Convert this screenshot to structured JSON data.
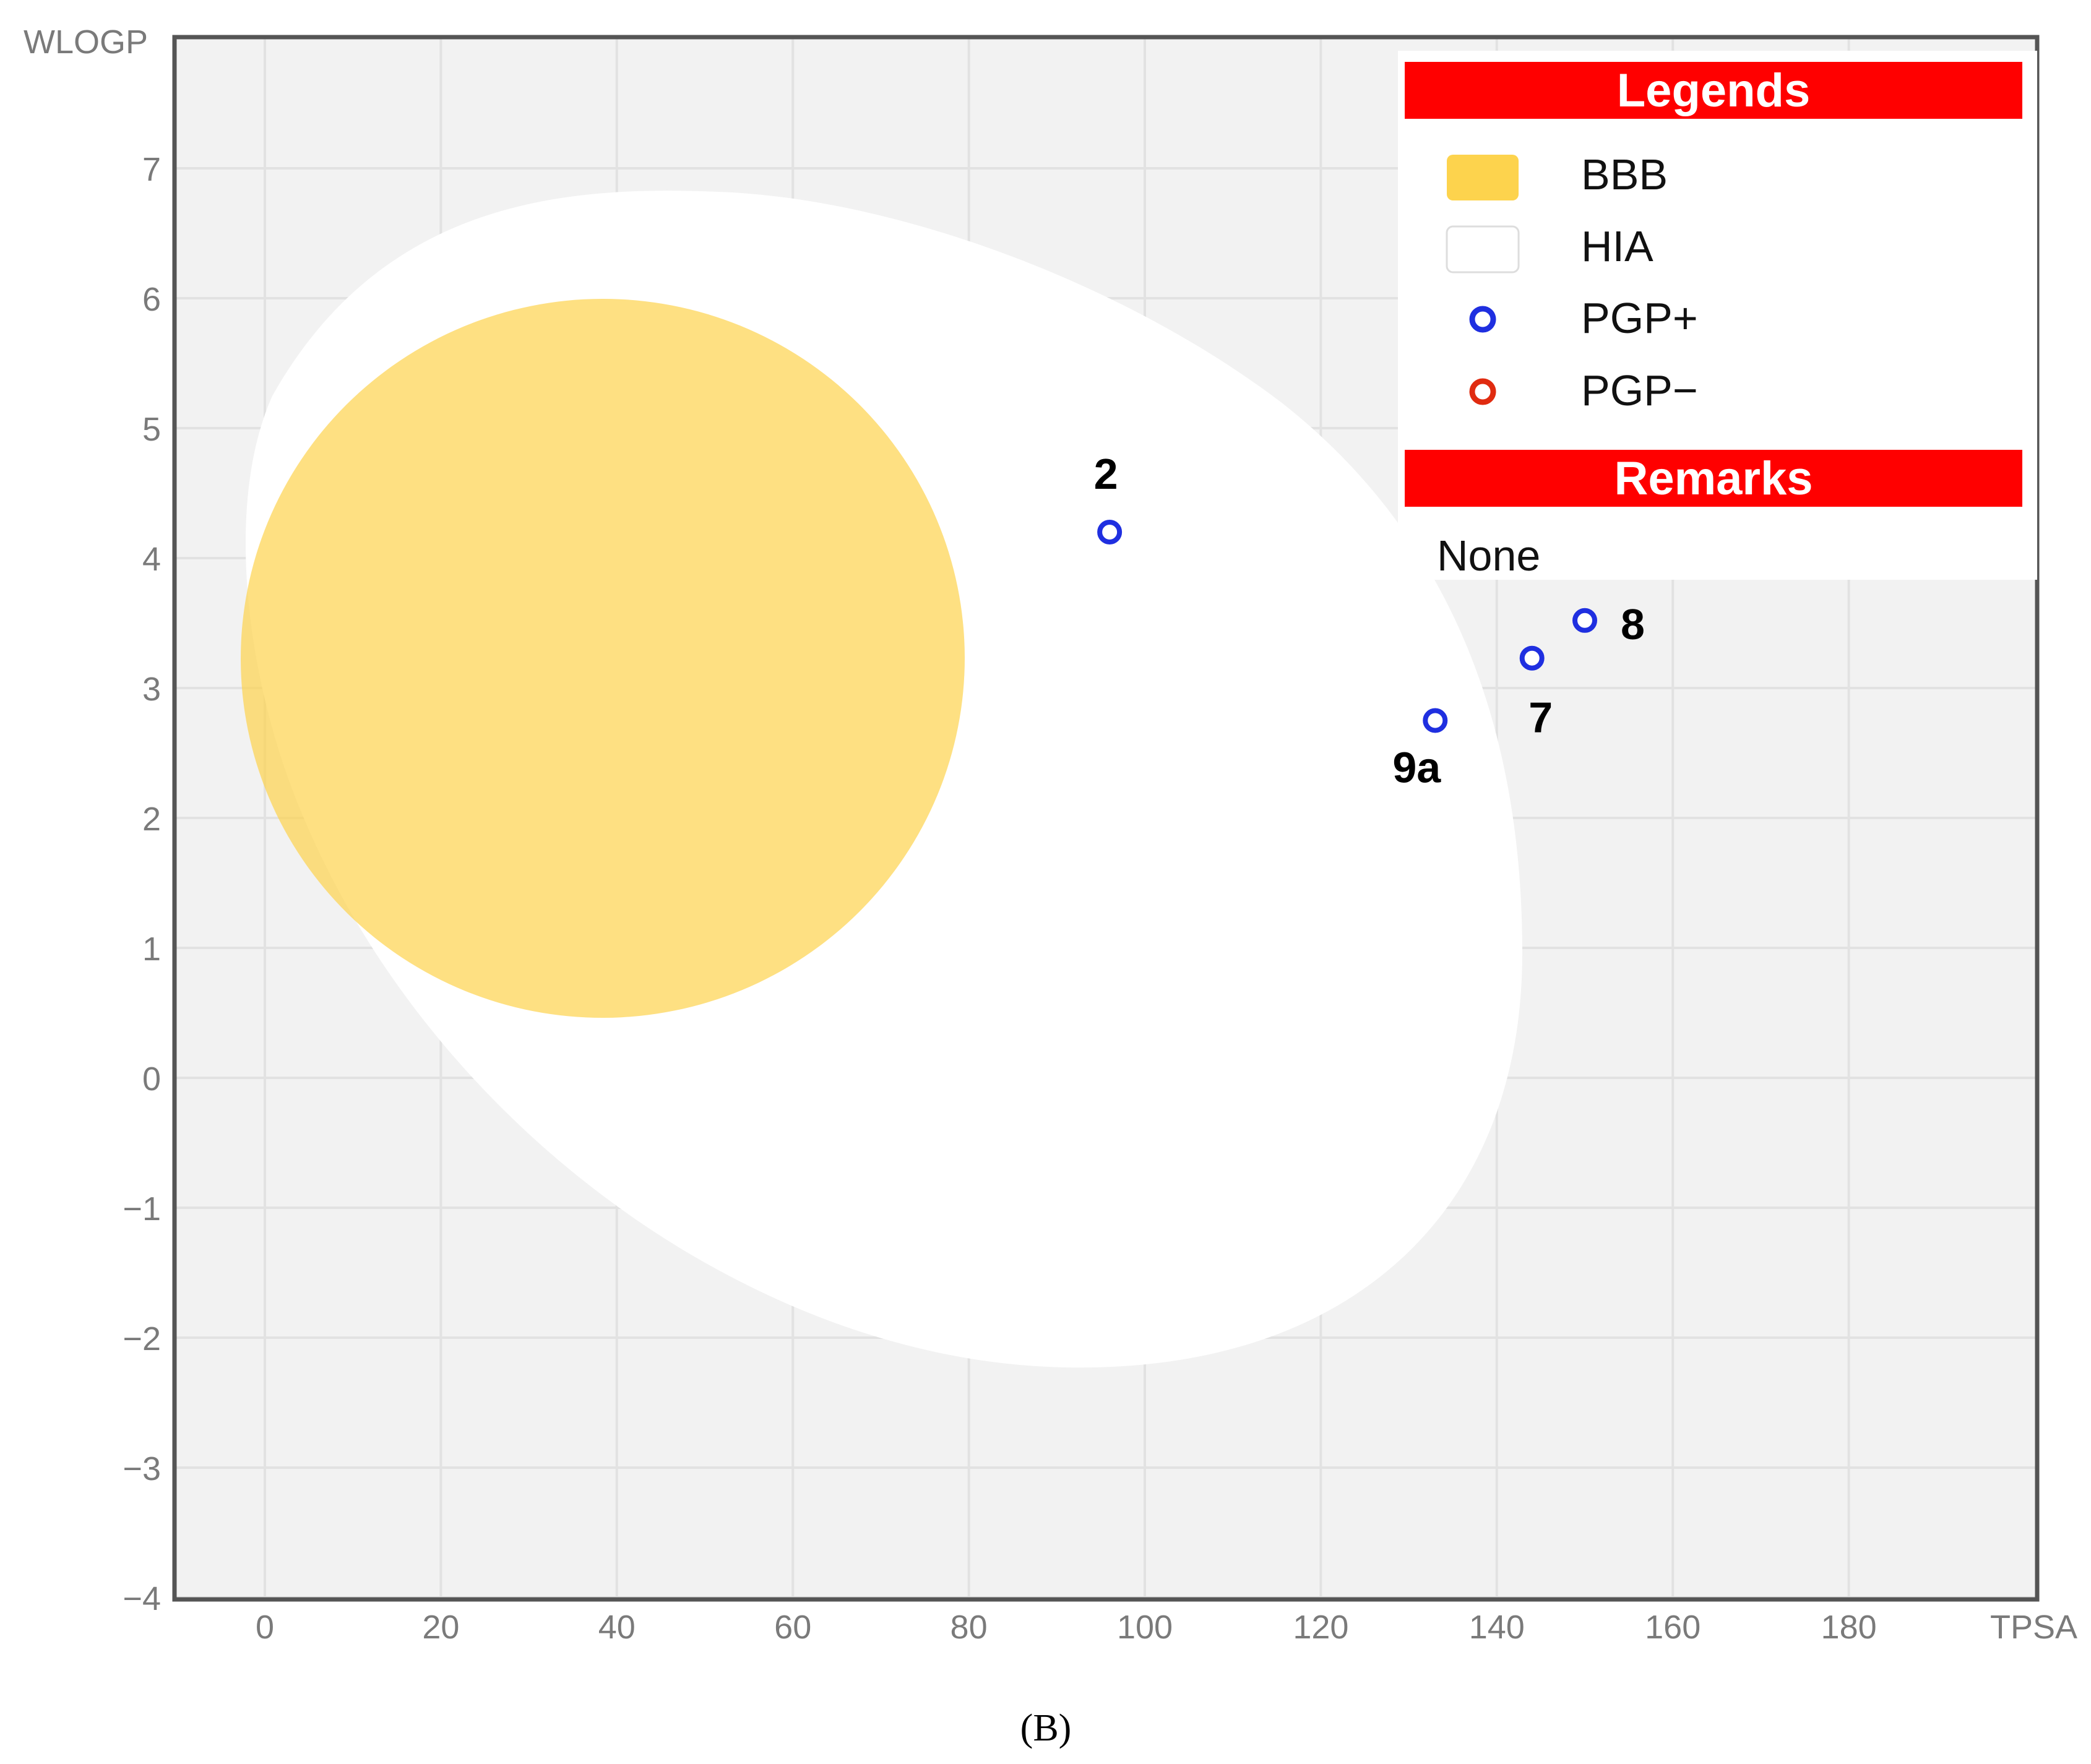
{
  "chart_data": {
    "type": "scatter",
    "xlabel": "TPSA",
    "ylabel": "WLOGP",
    "xlim": [
      -10,
      202
    ],
    "ylim": [
      -4,
      8
    ],
    "x_ticks": [
      "0",
      "20",
      "40",
      "60",
      "80",
      "100",
      "120",
      "140",
      "160",
      "180"
    ],
    "y_ticks": [
      "7",
      "6",
      "5",
      "4",
      "3",
      "2",
      "1",
      "0",
      "−1",
      "−2",
      "−3",
      "−4"
    ],
    "grid": true,
    "regions": [
      {
        "name": "HIA",
        "shape": "ellipse",
        "color": "#ffffff"
      },
      {
        "name": "BBB",
        "shape": "ellipse",
        "color": "#fddc82"
      }
    ],
    "points": [
      {
        "label": "2",
        "x": 96,
        "y": 4.2,
        "class": "PGP+"
      },
      {
        "label": "8",
        "x": 150,
        "y": 3.52,
        "class": "PGP+"
      },
      {
        "label": "7",
        "x": 144,
        "y": 3.23,
        "class": "PGP+"
      },
      {
        "label": "9a",
        "x": 133,
        "y": 2.75,
        "class": "PGP+"
      }
    ],
    "legend": {
      "title": "Legends",
      "placement": "top-right",
      "items": [
        {
          "label": "BBB",
          "swatch": "#fdd34d"
        },
        {
          "label": "HIA",
          "swatch": "#ffffff"
        },
        {
          "label": "PGP+",
          "swatch": "#1f2fe0"
        },
        {
          "label": "PGP−",
          "swatch": "#e02b10"
        }
      ]
    },
    "remarks": {
      "title": "Remarks",
      "text": "None"
    }
  },
  "caption": "(B)",
  "colors": {
    "plot_bg": "#f2f2f2",
    "grid": "#e2e2e2",
    "frame": "#555555",
    "header_red": "#ff0000",
    "pgp_plus": "#1f2fe0",
    "pgp_minus": "#e02b10"
  }
}
